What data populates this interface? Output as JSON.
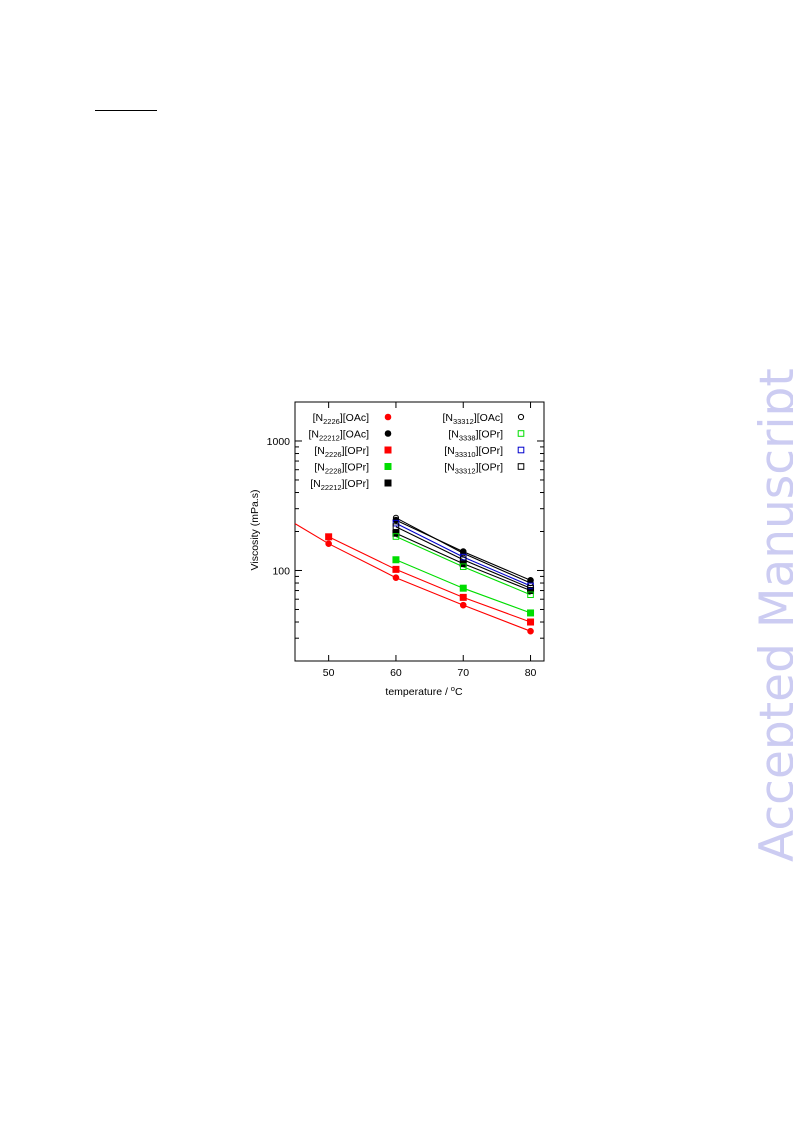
{
  "page": {
    "watermark": "Accepted Manuscript",
    "watermark_color": "#ccccf2"
  },
  "chart_data": {
    "type": "line",
    "xlabel": "temperature / °C",
    "xlabel_parts": {
      "text": "temperature / ",
      "sup": "o",
      "unit": "C"
    },
    "ylabel": "Viscosity (mPa.s)",
    "y_scale": "log",
    "xlim": [
      45,
      82
    ],
    "ylim": [
      20,
      2000
    ],
    "xticks": [
      "50",
      "60",
      "70",
      "80"
    ],
    "yticks": [
      "100",
      "1000"
    ],
    "legend_placement": "top, two columns",
    "series": [
      {
        "key": "N2226_OAc",
        "name": "[N2226][OAc]",
        "name_base": "[N",
        "name_sub": "2226",
        "name_tail": "][OAc]",
        "color": "#ff0000",
        "marker": "circle",
        "filled": true,
        "x": [
          50,
          60,
          70,
          80
        ],
        "y": [
          161,
          88,
          54,
          34
        ],
        "fit_x": [
          45,
          50,
          60,
          70,
          80
        ],
        "fit_y": [
          230,
          161,
          88,
          54,
          34
        ]
      },
      {
        "key": "N22212_OAc",
        "name": "[N22212][OAc]",
        "name_base": "[N",
        "name_sub": "22212",
        "name_tail": "][OAc]",
        "color": "#000000",
        "marker": "circle",
        "filled": true,
        "x": [
          60,
          70,
          80
        ],
        "y": [
          245,
          140,
          84
        ],
        "fit_x": [
          60,
          70,
          80
        ],
        "fit_y": [
          245,
          140,
          84
        ]
      },
      {
        "key": "N2226_OPr",
        "name": "[N2226][OPr]",
        "name_base": "[N",
        "name_sub": "2226",
        "name_tail": "][OPr]",
        "color": "#ff0000",
        "marker": "square",
        "filled": true,
        "x": [
          50,
          60,
          70,
          80
        ],
        "y": [
          182,
          102,
          62,
          40
        ],
        "fit_x": [
          50,
          60,
          70,
          80
        ],
        "fit_y": [
          182,
          102,
          62,
          40
        ]
      },
      {
        "key": "N2228_OPr",
        "name": "[N2228][OPr]",
        "name_base": "[N",
        "name_sub": "2228",
        "name_tail": "][OPr]",
        "color": "#00dd00",
        "marker": "square",
        "filled": true,
        "x": [
          60,
          70,
          80
        ],
        "y": [
          121,
          73,
          47
        ],
        "fit_x": [
          60,
          70,
          80
        ],
        "fit_y": [
          121,
          73,
          47
        ]
      },
      {
        "key": "N22212_OPr",
        "name": "[N22212][OPr]",
        "name_base": "[N",
        "name_sub": "22212",
        "name_tail": "][OPr]",
        "color": "#000000",
        "marker": "square",
        "filled": true,
        "x": [
          60,
          70,
          80
        ],
        "y": [
          194,
          113,
          70
        ],
        "fit_x": [
          60,
          70,
          80
        ],
        "fit_y": [
          194,
          113,
          70
        ]
      },
      {
        "key": "N33312_OAc",
        "name": "[N33312][OAc]",
        "name_base": "[N",
        "name_sub": "33312",
        "name_tail": "][OAc]",
        "color": "#000000",
        "marker": "circle",
        "filled": false,
        "x": [
          60,
          70,
          80
        ],
        "y": [
          255,
          136,
          80
        ],
        "fit_x": [
          60,
          70,
          80
        ],
        "fit_y": [
          255,
          136,
          80
        ]
      },
      {
        "key": "N3338_OPr",
        "name": "[N3338][OPr]",
        "name_base": "[N",
        "name_sub": "3338",
        "name_tail": "][OPr]",
        "color": "#00dd00",
        "marker": "square",
        "filled": false,
        "x": [
          60,
          70,
          80
        ],
        "y": [
          183,
          107,
          65
        ],
        "fit_x": [
          60,
          70,
          80
        ],
        "fit_y": [
          183,
          107,
          65
        ]
      },
      {
        "key": "N33310_OPr",
        "name": "[N33310][OPr]",
        "name_base": "[N",
        "name_sub": "33310",
        "name_tail": "][OPr]",
        "color": "#0000cc",
        "marker": "square",
        "filled": false,
        "x": [
          60,
          70,
          80
        ],
        "y": [
          232,
          127,
          76
        ],
        "fit_x": [
          60,
          70,
          80
        ],
        "fit_y": [
          232,
          127,
          76
        ]
      },
      {
        "key": "N33312_OPr",
        "name": "[N33312][OPr]",
        "name_base": "[N",
        "name_sub": "33312",
        "name_tail": "][OPr]",
        "color": "#000000",
        "marker": "square",
        "filled": false,
        "x": [
          60,
          70,
          80
        ],
        "y": [
          218,
          121,
          73
        ],
        "fit_x": [
          60,
          70,
          80
        ],
        "fit_y": [
          218,
          121,
          73
        ]
      }
    ],
    "legend_left": [
      "N2226_OAc",
      "N22212_OAc",
      "N2226_OPr",
      "N2228_OPr",
      "N22212_OPr"
    ],
    "legend_right": [
      "N33312_OAc",
      "N3338_OPr",
      "N33310_OPr",
      "N33312_OPr"
    ]
  }
}
